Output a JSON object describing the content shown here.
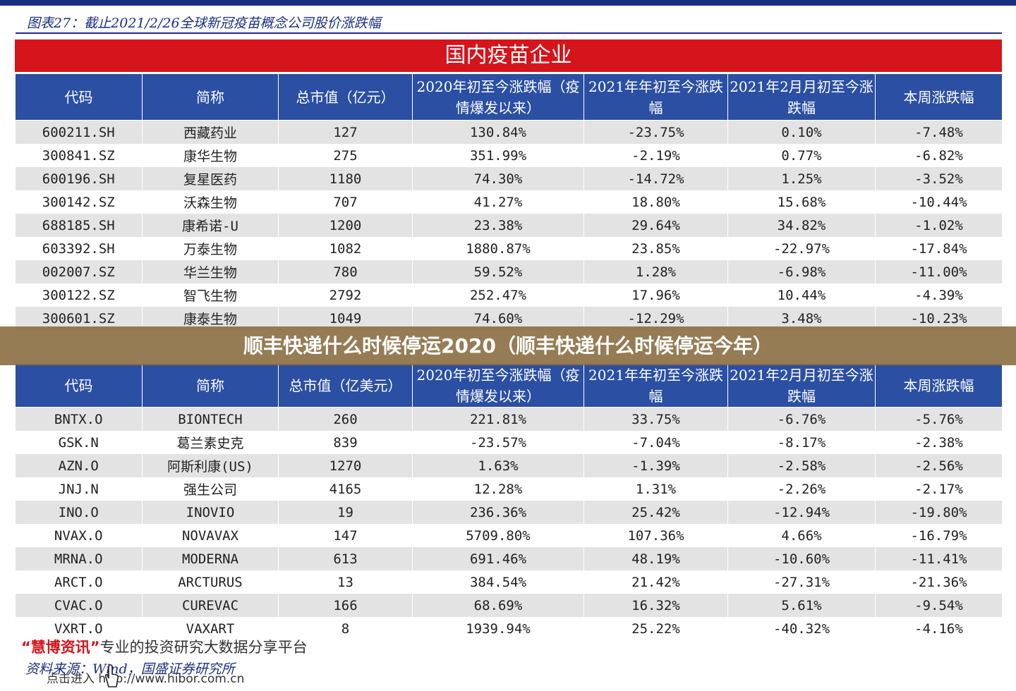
{
  "figure_title": "图表27：截止2021/2/26全球新冠疫苗概念公司股价涨跌幅",
  "domestic": {
    "section_title": "国内疫苗企业",
    "headers": [
      "代码",
      "简称",
      "总市值（亿元）",
      "2020年初至今涨跌幅（疫情爆发以来）",
      "2021年年初至今涨跌幅",
      "2021年2月月初至今涨跌幅",
      "本周涨跌幅"
    ],
    "rows": [
      [
        "600211.SH",
        "西藏药业",
        "127",
        "130.84%",
        "-23.75%",
        "0.10%",
        "-7.48%"
      ],
      [
        "300841.SZ",
        "康华生物",
        "275",
        "351.99%",
        "-2.19%",
        "0.77%",
        "-6.82%"
      ],
      [
        "600196.SH",
        "复星医药",
        "1180",
        "74.30%",
        "-14.72%",
        "1.25%",
        "-3.52%"
      ],
      [
        "300142.SZ",
        "沃森生物",
        "707",
        "41.27%",
        "18.80%",
        "15.68%",
        "-10.44%"
      ],
      [
        "688185.SH",
        "康希诺-U",
        "1200",
        "23.38%",
        "29.64%",
        "34.82%",
        "-1.02%"
      ],
      [
        "603392.SH",
        "万泰生物",
        "1082",
        "1880.87%",
        "23.85%",
        "-22.97%",
        "-17.84%"
      ],
      [
        "002007.SZ",
        "华兰生物",
        "780",
        "59.52%",
        "1.28%",
        "-6.98%",
        "-11.00%"
      ],
      [
        "300122.SZ",
        "智飞生物",
        "2792",
        "252.47%",
        "17.96%",
        "10.44%",
        "-4.39%"
      ],
      [
        "300601.SZ",
        "康泰生物",
        "1049",
        "74.60%",
        "-12.29%",
        "3.48%",
        "-10.23%"
      ]
    ]
  },
  "overlay_banner": "顺丰快递什么时候停运2020（顺丰快递什么时候停运今年）",
  "foreign": {
    "headers": [
      "代码",
      "简称",
      "总市值（亿美元）",
      "2020年初至今涨跌幅（疫情爆发以来）",
      "2021年年初至今涨跌幅",
      "2021年2月月初至今涨跌幅",
      "本周涨跌幅"
    ],
    "rows": [
      [
        "BNTX.O",
        "BIONTECH",
        "260",
        "221.81%",
        "33.75%",
        "-6.76%",
        "-5.76%"
      ],
      [
        "GSK.N",
        "葛兰素史克",
        "839",
        "-23.57%",
        "-7.04%",
        "-8.17%",
        "-2.38%"
      ],
      [
        "AZN.O",
        "阿斯利康(US)",
        "1270",
        "1.63%",
        "-1.39%",
        "-2.58%",
        "-2.56%"
      ],
      [
        "JNJ.N",
        "强生公司",
        "4165",
        "12.28%",
        "1.31%",
        "-2.26%",
        "-2.17%"
      ],
      [
        "INO.O",
        "INOVIO",
        "19",
        "236.36%",
        "25.42%",
        "-12.94%",
        "-19.80%"
      ],
      [
        "NVAX.O",
        "NOVAVAX",
        "147",
        "5709.80%",
        "107.36%",
        "4.66%",
        "-16.79%"
      ],
      [
        "MRNA.O",
        "MODERNA",
        "613",
        "691.46%",
        "48.19%",
        "-10.60%",
        "-11.41%"
      ],
      [
        "ARCT.O",
        "ARCTURUS",
        "13",
        "384.54%",
        "21.42%",
        "-27.31%",
        "-21.36%"
      ],
      [
        "CVAC.O",
        "CUREVAC",
        "166",
        "68.69%",
        "16.32%",
        "5.61%",
        "-9.54%"
      ],
      [
        "VXRT.O",
        "VAXART",
        "8",
        "1939.94%",
        "25.22%",
        "-40.32%",
        "-4.16%"
      ]
    ]
  },
  "source_note": "资料来源：Wind，国盛证券研究所",
  "watermark": {
    "brand": "“慧博资讯”",
    "tagline": "专业的投资研究大数据分享平台",
    "link": "点击进入 http://www.hibor.com.cn"
  },
  "colors": {
    "header_blue": "#2b4fa3",
    "section_red": "#d5141b",
    "title_navy": "#1a2e86",
    "overlay_brown": "#8b6e41"
  }
}
